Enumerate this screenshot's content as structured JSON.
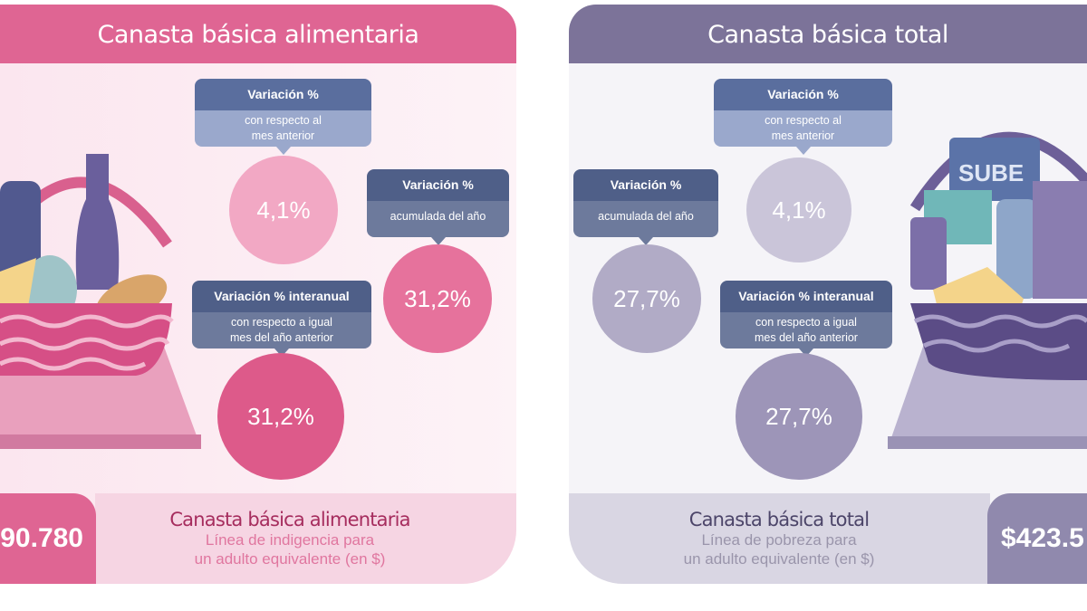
{
  "left": {
    "title": "Canasta básica alimentaria",
    "colors": {
      "header": "#df6593",
      "panel": "#fbe8f0",
      "value_box": "#df6593"
    },
    "monthly": {
      "title": "Variación %",
      "subtitle_1": "con respecto al",
      "subtitle_2": "mes anterior",
      "value": "4,1%"
    },
    "ytd": {
      "title": "Variación %",
      "subtitle_1": "acumulada del año",
      "value": "31,2%"
    },
    "yoy": {
      "title": "Variación % interanual",
      "subtitle_1": "con respecto a igual",
      "subtitle_2": "mes del año anterior",
      "value": "31,2%"
    },
    "amount": "90.780",
    "label": "Canasta básica alimentaria",
    "desc_1": "Línea de indigencia para",
    "desc_2": "un adulto equivalente (en $)",
    "illustration": "food-basket-icon"
  },
  "right": {
    "title": "Canasta básica total",
    "colors": {
      "header": "#7c7399",
      "panel": "#f4f3f8",
      "value_box": "#9089ad"
    },
    "monthly": {
      "title": "Variación %",
      "subtitle_1": "con respecto al",
      "subtitle_2": "mes anterior",
      "value": "4,1%"
    },
    "ytd": {
      "title": "Variación %",
      "subtitle_1": "acumulada del año",
      "value": "27,7%"
    },
    "yoy": {
      "title": "Variación % interanual",
      "subtitle_1": "con respecto a igual",
      "subtitle_2": "mes del año anterior",
      "value": "27,7%"
    },
    "amount": "$423.5",
    "label": "Canasta básica total",
    "desc_1": "Línea de pobreza para",
    "desc_2": "un adulto equivalente (en $)",
    "card_text": "SUBE",
    "illustration": "goods-basket-icon"
  }
}
